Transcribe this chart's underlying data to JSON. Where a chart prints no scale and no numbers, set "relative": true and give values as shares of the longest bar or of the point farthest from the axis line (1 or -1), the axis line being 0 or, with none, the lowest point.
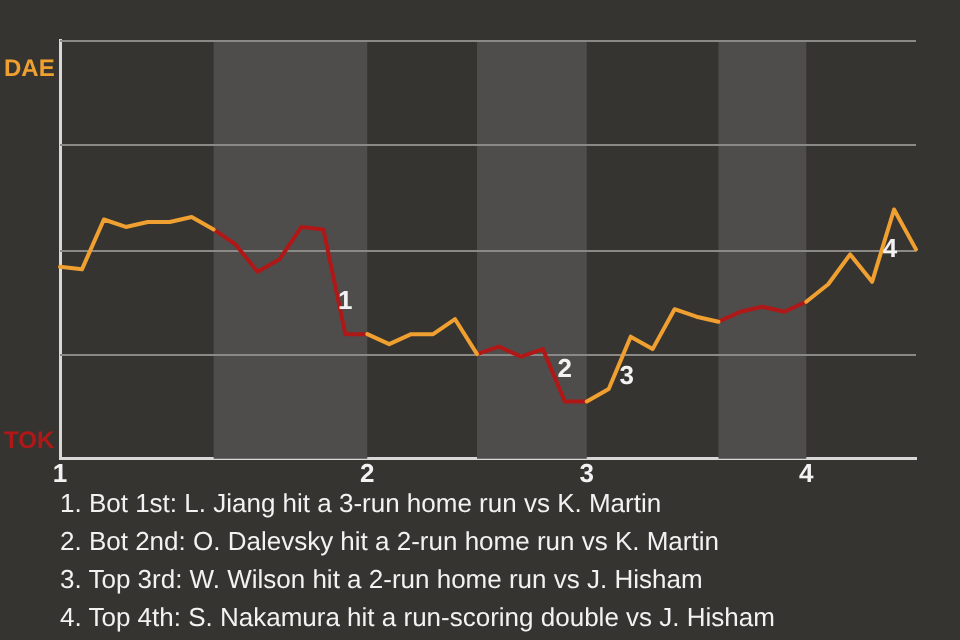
{
  "chart_data": {
    "type": "line",
    "relative": true,
    "categories": [
      "1",
      null,
      null,
      null,
      null,
      null,
      null,
      null,
      null,
      null,
      null,
      null,
      null,
      null,
      "2",
      null,
      null,
      null,
      null,
      null,
      null,
      null,
      null,
      null,
      "3",
      null,
      null,
      null,
      null,
      null,
      null,
      null,
      null,
      null,
      "4",
      null,
      null,
      null,
      null,
      null
    ],
    "marker": "none",
    "line_style": "solid",
    "ref_lines": [
      {
        "axis": "y",
        "value": 0.42,
        "color": "#8a8986"
      },
      {
        "axis": "y",
        "value": 0.84,
        "color": "#8a8986"
      },
      {
        "axis": "y",
        "value": 1.26,
        "color": "#8a8986"
      },
      {
        "axis": "y",
        "value": 1.68,
        "color": "#8a8986"
      }
    ],
    "series": [
      {
        "color": "#f0a030",
        "values": [
          0.77,
          0.76,
          0.96,
          0.93,
          0.95,
          0.95,
          0.97,
          0.92,
          null,
          null,
          null,
          null,
          null,
          null,
          0.5,
          0.46,
          0.5,
          0.5,
          0.56,
          0.42,
          null,
          null,
          null,
          null,
          0.23,
          0.28,
          0.49,
          0.44,
          0.6,
          0.57,
          0.55,
          null,
          null,
          null,
          0.63,
          0.7,
          0.82,
          0.71,
          1,
          0.84
        ]
      },
      {
        "color": "#b01818",
        "values": [
          null,
          null,
          null,
          null,
          null,
          null,
          null,
          0.92,
          0.86,
          0.75,
          0.8,
          0.93,
          0.92,
          0.5,
          0.5,
          null,
          null,
          null,
          null,
          0.42,
          0.45,
          0.41,
          0.44,
          0.23,
          0.23,
          null,
          null,
          null,
          null,
          null,
          0.55,
          0.59,
          0.61,
          0.59,
          0.63,
          null,
          null,
          null,
          null,
          null
        ]
      }
    ],
    "annotations": [
      "DAE",
      "TOK",
      {
        "text": "1",
        "y": 0.5
      },
      {
        "text": "2",
        "y": 0.23
      },
      {
        "text": "3",
        "y": 0.49
      },
      {
        "text": "4",
        "y": 1
      },
      "1. Bot 1st: L. Jiang hit a 3-run home run vs K. Martin",
      "2. Bot 2nd: O. Dalevsky hit a 2-run home run vs K. Martin",
      "3. Top 3rd: W. Wilson hit a 2-run home run vs J. Hisham",
      "4. Top 4th: S. Nakamura hit a run-scoring double vs J. Hisham"
    ]
  }
}
